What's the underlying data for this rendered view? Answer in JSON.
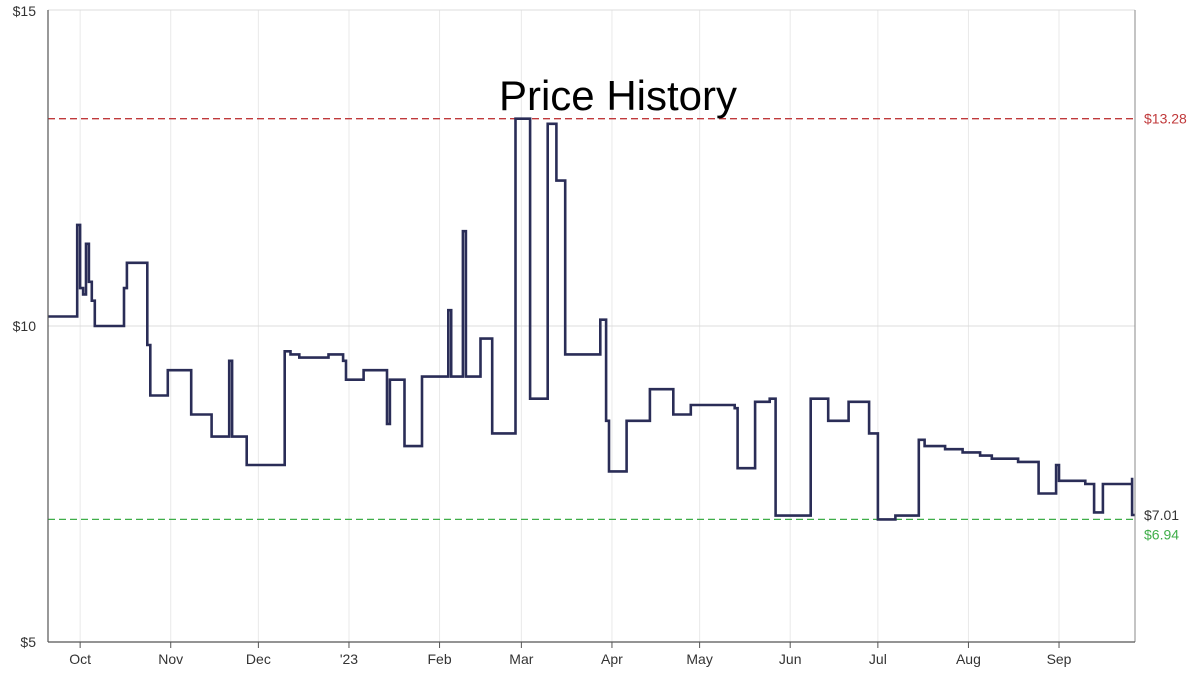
{
  "chart_data": {
    "type": "line",
    "title": "Price History",
    "xlabel": "",
    "ylabel": "",
    "x_range": [
      "2022-09-20",
      "2023-09-27"
    ],
    "ylim": [
      5,
      15
    ],
    "y_ticks": [
      "$5",
      "$10",
      "$15"
    ],
    "y_tick_values": [
      5,
      10,
      15
    ],
    "x_ticks": [
      {
        "label": "Oct",
        "date": "2022-10-01"
      },
      {
        "label": "Nov",
        "date": "2022-11-01"
      },
      {
        "label": "Dec",
        "date": "2022-12-01"
      },
      {
        "label": "'23",
        "date": "2023-01-01"
      },
      {
        "label": "Feb",
        "date": "2023-02-01"
      },
      {
        "label": "Mar",
        "date": "2023-03-01"
      },
      {
        "label": "Apr",
        "date": "2023-04-01"
      },
      {
        "label": "May",
        "date": "2023-05-01"
      },
      {
        "label": "Jun",
        "date": "2023-06-01"
      },
      {
        "label": "Jul",
        "date": "2023-07-01"
      },
      {
        "label": "Aug",
        "date": "2023-08-01"
      },
      {
        "label": "Sep",
        "date": "2023-09-01"
      }
    ],
    "reference_lines": [
      {
        "name": "highest",
        "value": 13.28,
        "label": "$13.28",
        "color": "#c0393b"
      },
      {
        "name": "lowest",
        "value": 6.94,
        "label": "$6.94",
        "color": "#3fae49"
      }
    ],
    "current": {
      "value": 7.01,
      "label": "$7.01"
    },
    "grid": true,
    "series": [
      {
        "color": "#2a2d57",
        "points": [
          [
            "2022-09-20",
            10.15
          ],
          [
            "2022-09-30",
            11.6
          ],
          [
            "2022-10-01",
            10.6
          ],
          [
            "2022-10-02",
            10.5
          ],
          [
            "2022-10-03",
            11.3
          ],
          [
            "2022-10-04",
            10.7
          ],
          [
            "2022-10-05",
            10.4
          ],
          [
            "2022-10-06",
            10.0
          ],
          [
            "2022-10-16",
            10.6
          ],
          [
            "2022-10-17",
            11.0
          ],
          [
            "2022-10-24",
            9.7
          ],
          [
            "2022-10-25",
            8.9
          ],
          [
            "2022-10-31",
            9.3
          ],
          [
            "2022-11-08",
            8.6
          ],
          [
            "2022-11-15",
            8.25
          ],
          [
            "2022-11-21",
            9.45
          ],
          [
            "2022-11-22",
            8.25
          ],
          [
            "2022-11-27",
            7.8
          ],
          [
            "2022-12-10",
            9.6
          ],
          [
            "2022-12-12",
            9.55
          ],
          [
            "2022-12-15",
            9.5
          ],
          [
            "2022-12-20",
            9.5
          ],
          [
            "2022-12-25",
            9.55
          ],
          [
            "2022-12-30",
            9.45
          ],
          [
            "2022-12-31",
            9.15
          ],
          [
            "2023-01-06",
            9.3
          ],
          [
            "2023-01-14",
            8.45
          ],
          [
            "2023-01-15",
            9.15
          ],
          [
            "2023-01-20",
            8.1
          ],
          [
            "2023-01-26",
            9.2
          ],
          [
            "2023-02-04",
            10.25
          ],
          [
            "2023-02-05",
            9.2
          ],
          [
            "2023-02-09",
            11.5
          ],
          [
            "2023-02-10",
            9.2
          ],
          [
            "2023-02-15",
            9.8
          ],
          [
            "2023-02-19",
            8.3
          ],
          [
            "2023-02-27",
            13.28
          ],
          [
            "2023-03-04",
            8.85
          ],
          [
            "2023-03-10",
            13.2
          ],
          [
            "2023-03-13",
            12.3
          ],
          [
            "2023-03-16",
            9.55
          ],
          [
            "2023-03-28",
            10.1
          ],
          [
            "2023-03-30",
            8.5
          ],
          [
            "2023-03-31",
            7.7
          ],
          [
            "2023-04-06",
            8.5
          ],
          [
            "2023-04-14",
            9.0
          ],
          [
            "2023-04-22",
            8.6
          ],
          [
            "2023-04-28",
            8.75
          ],
          [
            "2023-05-08",
            8.75
          ],
          [
            "2023-05-13",
            8.7
          ],
          [
            "2023-05-14",
            7.75
          ],
          [
            "2023-05-20",
            8.8
          ],
          [
            "2023-05-25",
            8.85
          ],
          [
            "2023-05-27",
            7.0
          ],
          [
            "2023-06-08",
            8.85
          ],
          [
            "2023-06-14",
            8.5
          ],
          [
            "2023-06-21",
            8.8
          ],
          [
            "2023-06-28",
            8.3
          ],
          [
            "2023-07-01",
            6.94
          ],
          [
            "2023-07-07",
            7.0
          ],
          [
            "2023-07-15",
            8.2
          ],
          [
            "2023-07-17",
            8.1
          ],
          [
            "2023-07-24",
            8.05
          ],
          [
            "2023-07-30",
            8.0
          ],
          [
            "2023-08-05",
            7.95
          ],
          [
            "2023-08-09",
            7.9
          ],
          [
            "2023-08-18",
            7.85
          ],
          [
            "2023-08-25",
            7.35
          ],
          [
            "2023-08-31",
            7.8
          ],
          [
            "2023-09-01",
            7.55
          ],
          [
            "2023-09-10",
            7.5
          ],
          [
            "2023-09-13",
            7.05
          ],
          [
            "2023-09-16",
            7.5
          ],
          [
            "2023-09-26",
            7.6
          ],
          [
            "2023-09-26",
            7.01
          ],
          [
            "2023-09-27",
            7.01
          ]
        ]
      }
    ]
  }
}
